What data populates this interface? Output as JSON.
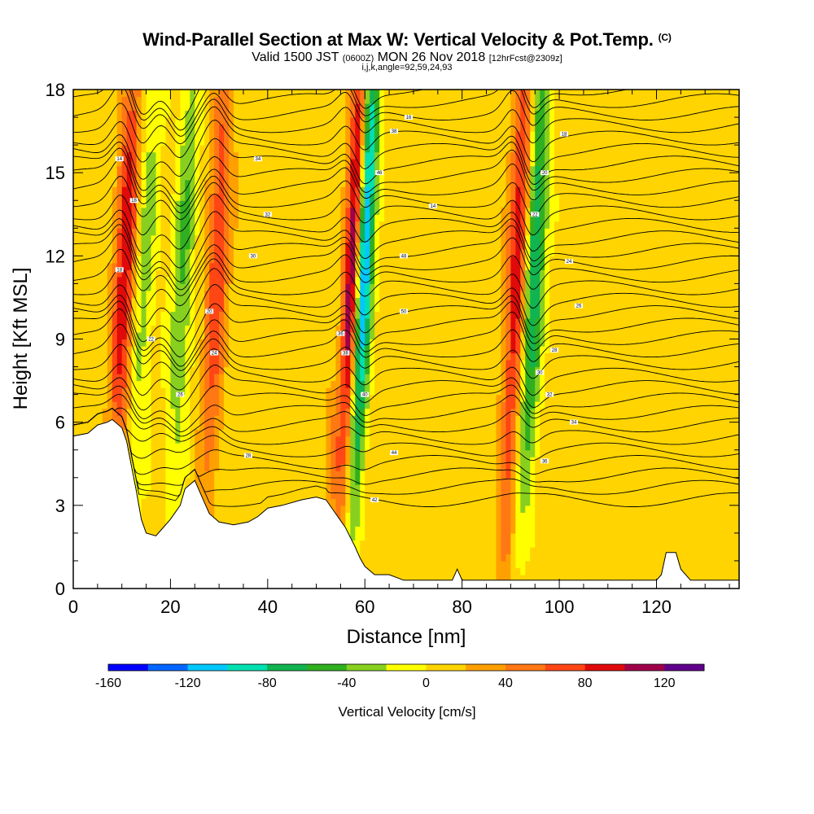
{
  "header": {
    "title": "Wind-Parallel Section at Max W: Vertical Velocity & Pot.Temp.",
    "title_mark": "(C)",
    "valid_prefix": "Valid 1500 JST",
    "valid_utc": "(0600Z)",
    "valid_date": "MON 26 Nov 2018",
    "forecast": "[12hrFcst@2309z]",
    "grid_info": "i,j,k,angle=92,59,24,93"
  },
  "chart_data": {
    "type": "heatmap",
    "xlabel": "Distance [nm]",
    "ylabel": "Height [Kft MSL]",
    "xlim": [
      0,
      137
    ],
    "ylim": [
      0,
      18
    ],
    "x_ticks": [
      0,
      20,
      40,
      60,
      80,
      100,
      120
    ],
    "y_ticks": [
      0,
      3,
      6,
      9,
      12,
      15,
      18
    ],
    "colorbar": {
      "title": "Vertical Velocity [cm/s]",
      "levels": [
        -160,
        -140,
        -120,
        -100,
        -80,
        -60,
        -40,
        -20,
        0,
        20,
        40,
        60,
        80,
        100,
        120,
        140
      ],
      "colors": [
        "#0000ff",
        "#0066ff",
        "#00c8ff",
        "#00e0b0",
        "#10b450",
        "#30b020",
        "#88d020",
        "#ffff00",
        "#ffd400",
        "#ffa000",
        "#ff7814",
        "#ff4614",
        "#e00a0a",
        "#a0004a",
        "#60008c"
      ],
      "tick_labels": [
        -160,
        -120,
        -80,
        -40,
        0,
        40,
        80,
        120
      ]
    },
    "features": [
      {
        "x": 10,
        "kind": "updraft",
        "peak": 90
      },
      {
        "x": 14,
        "kind": "downdraft",
        "peak": -40
      },
      {
        "x": 22,
        "kind": "downdraft",
        "peak": -50
      },
      {
        "x": 29,
        "kind": "updraft",
        "peak": 70
      },
      {
        "x": 57,
        "kind": "updraft",
        "peak": 140
      },
      {
        "x": 59,
        "kind": "downdraft",
        "peak": -160
      },
      {
        "x": 91,
        "kind": "updraft",
        "peak": 100
      },
      {
        "x": 94,
        "kind": "downdraft",
        "peak": -100
      }
    ],
    "terrain": [
      [
        0,
        5.5
      ],
      [
        3,
        5.6
      ],
      [
        5,
        5.9
      ],
      [
        7,
        6.0
      ],
      [
        8,
        6.1
      ],
      [
        10,
        5.8
      ],
      [
        11,
        5.3
      ],
      [
        12,
        4.4
      ],
      [
        13,
        3.5
      ],
      [
        14,
        2.5
      ],
      [
        15,
        2.0
      ],
      [
        17,
        1.9
      ],
      [
        18,
        2.1
      ],
      [
        20,
        2.5
      ],
      [
        22,
        3.0
      ],
      [
        23,
        3.6
      ],
      [
        25,
        3.9
      ],
      [
        27,
        3.1
      ],
      [
        28,
        2.7
      ],
      [
        30,
        2.4
      ],
      [
        33,
        2.3
      ],
      [
        36,
        2.4
      ],
      [
        38,
        2.6
      ],
      [
        40,
        2.9
      ],
      [
        43,
        3.0
      ],
      [
        47,
        3.2
      ],
      [
        50,
        3.3
      ],
      [
        52,
        3.2
      ],
      [
        54,
        2.7
      ],
      [
        56,
        2.2
      ],
      [
        58,
        1.5
      ],
      [
        59,
        1.1
      ],
      [
        60,
        0.8
      ],
      [
        62,
        0.5
      ],
      [
        65,
        0.5
      ],
      [
        68,
        0.3
      ],
      [
        72,
        0.3
      ],
      [
        78,
        0.3
      ],
      [
        79,
        0.7
      ],
      [
        80,
        0.3
      ],
      [
        85,
        0.3
      ],
      [
        87,
        0.3
      ],
      [
        92,
        0.3
      ],
      [
        100,
        0.3
      ],
      [
        108,
        0.3
      ],
      [
        115,
        0.3
      ],
      [
        120,
        0.3
      ],
      [
        121,
        0.5
      ],
      [
        122,
        1.3
      ],
      [
        124,
        1.3
      ],
      [
        125,
        0.7
      ],
      [
        127,
        0.3
      ],
      [
        137,
        0.3
      ]
    ],
    "theta_contour_labels": [
      "14",
      "16",
      "18",
      "20",
      "22",
      "24",
      "26",
      "28",
      "30",
      "32",
      "34",
      "36",
      "38",
      "40",
      "42",
      "44",
      "46",
      "48",
      "50"
    ]
  }
}
